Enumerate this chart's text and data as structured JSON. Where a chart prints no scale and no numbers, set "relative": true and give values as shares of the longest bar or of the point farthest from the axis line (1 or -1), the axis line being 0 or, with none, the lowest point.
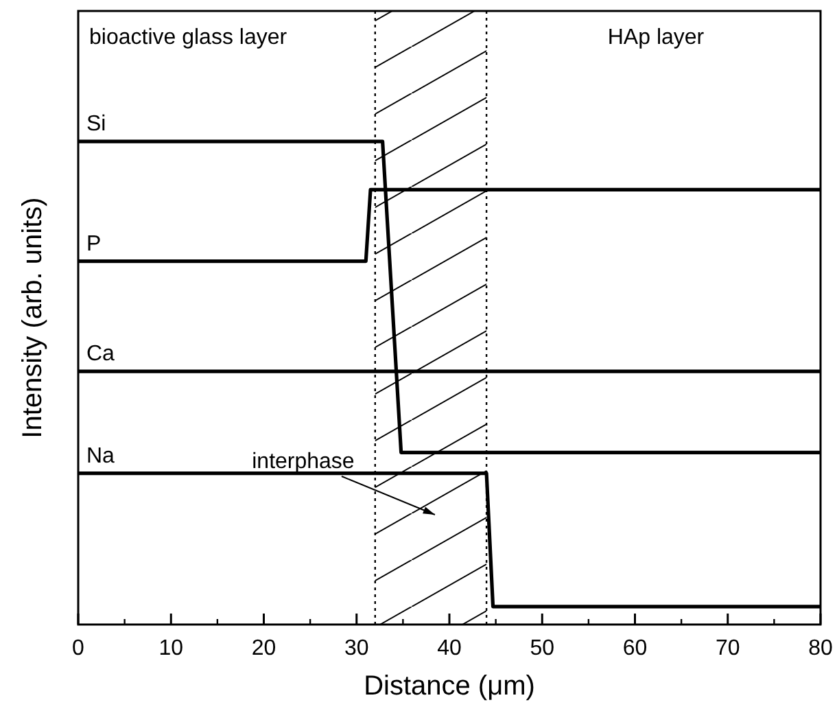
{
  "chart_data": {
    "type": "line",
    "relative": true,
    "xlabel": "Distance (μm)",
    "ylabel": "Intensity (arb. units)",
    "xlim": [
      0,
      80
    ],
    "xticks": [
      0,
      10,
      20,
      30,
      40,
      50,
      60,
      70,
      80
    ],
    "grid": false,
    "marker": "none",
    "line_style": "solid",
    "series": [
      {
        "name": "Si",
        "color": "#000000",
        "x": [
          0,
          32.8,
          34.8,
          80
        ],
        "values": [
          1,
          1,
          0.356,
          0.356
        ]
      },
      {
        "name": "P",
        "color": "#000000",
        "x": [
          0,
          31,
          31.5,
          80
        ],
        "values": [
          0.752,
          0.752,
          0.9,
          0.9
        ]
      },
      {
        "name": "Ca",
        "color": "#000000",
        "x": [
          0,
          80
        ],
        "values": [
          0.524,
          0.524
        ]
      },
      {
        "name": "Na",
        "color": "#000000",
        "x": [
          0,
          44,
          44.7,
          80
        ],
        "values": [
          0.313,
          0.313,
          0.037,
          0.037
        ]
      }
    ],
    "bands": [
      {
        "axis": "x",
        "from": 32,
        "to": 44
      }
    ],
    "ref_lines": [
      {
        "axis": "x",
        "value": 32,
        "line_style": "dotted"
      },
      {
        "axis": "x",
        "value": 44,
        "line_style": "dotted"
      }
    ],
    "annotations": [
      "bioactive glass layer",
      "HAp layer",
      "interphase"
    ]
  }
}
